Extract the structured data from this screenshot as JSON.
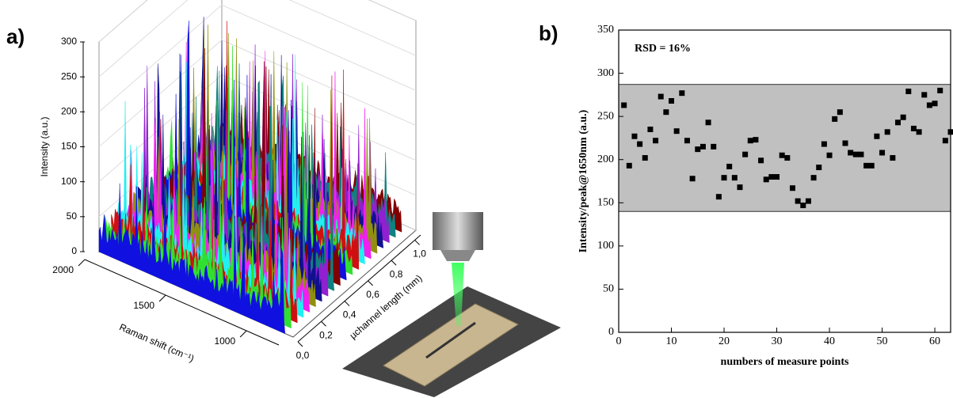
{
  "chart_data": [
    {
      "type": "waterfall3d",
      "panel_label": "a)",
      "zlabel": "Intensity (a.u.)",
      "xlabel": "Raman shift (cm⁻¹)",
      "ylabel": "µchannel length (mm)",
      "xlim": [
        2000,
        800
      ],
      "xticks": [
        2000,
        1500,
        1000
      ],
      "ylim": [
        0,
        1.05
      ],
      "yticks": [
        {
          "value": 0,
          "label": "0,0"
        },
        {
          "value": 0.2,
          "label": "0,2"
        },
        {
          "value": 0.4,
          "label": "0,4"
        },
        {
          "value": 0.6,
          "label": "0,6"
        },
        {
          "value": 0.8,
          "label": "0,8"
        },
        {
          "value": 1.0,
          "label": "1,0"
        }
      ],
      "zlim": [
        0,
        300
      ],
      "zticks": [
        0,
        50,
        100,
        150,
        200,
        250,
        300
      ],
      "colors": [
        "#1010e0",
        "#30e030",
        "#d01010",
        "#20f0f0",
        "#f020f0",
        "#909010",
        "#101090",
        "#9020d0",
        "#108080",
        "#800000"
      ]
    },
    {
      "type": "scatter",
      "panel_label": "b)",
      "annotation": "RSD = 16%",
      "xlabel": "numbers of measure points",
      "ylabel": "Intensity/peak@1650nm (a.u.)",
      "x": [
        1,
        2,
        3,
        4,
        5,
        6,
        7,
        8,
        9,
        10,
        11,
        12,
        13,
        14,
        15,
        16,
        17,
        18,
        19,
        20,
        21,
        22,
        23,
        24,
        25,
        26,
        27,
        28,
        29,
        30,
        31,
        32,
        33,
        34,
        35,
        36,
        37,
        38,
        39,
        40,
        41,
        42,
        43,
        44,
        45,
        46,
        47,
        48,
        49,
        50,
        51,
        52,
        53,
        54,
        55,
        56,
        57,
        58,
        59,
        60,
        61,
        62,
        63
      ],
      "values": [
        263,
        193,
        227,
        218,
        202,
        235,
        222,
        273,
        255,
        268,
        233,
        277,
        222,
        178,
        212,
        215,
        243,
        215,
        157,
        179,
        192,
        179,
        168,
        206,
        222,
        223,
        199,
        177,
        180,
        180,
        205,
        202,
        167,
        152,
        147,
        152,
        179,
        191,
        218,
        205,
        247,
        255,
        219,
        208,
        206,
        206,
        193,
        193,
        227,
        208,
        232,
        202,
        243,
        249,
        279,
        236,
        232,
        275,
        263,
        265,
        280,
        222,
        232
      ],
      "color": "#000000",
      "band": [
        140,
        287
      ],
      "band_color": "#c0c0c0",
      "xlim": [
        0,
        63
      ],
      "xticks": [
        0,
        10,
        20,
        30,
        40,
        50,
        60
      ],
      "ylim": [
        0,
        350
      ],
      "yticks": [
        0,
        50,
        100,
        150,
        200,
        250,
        300,
        350
      ]
    }
  ]
}
